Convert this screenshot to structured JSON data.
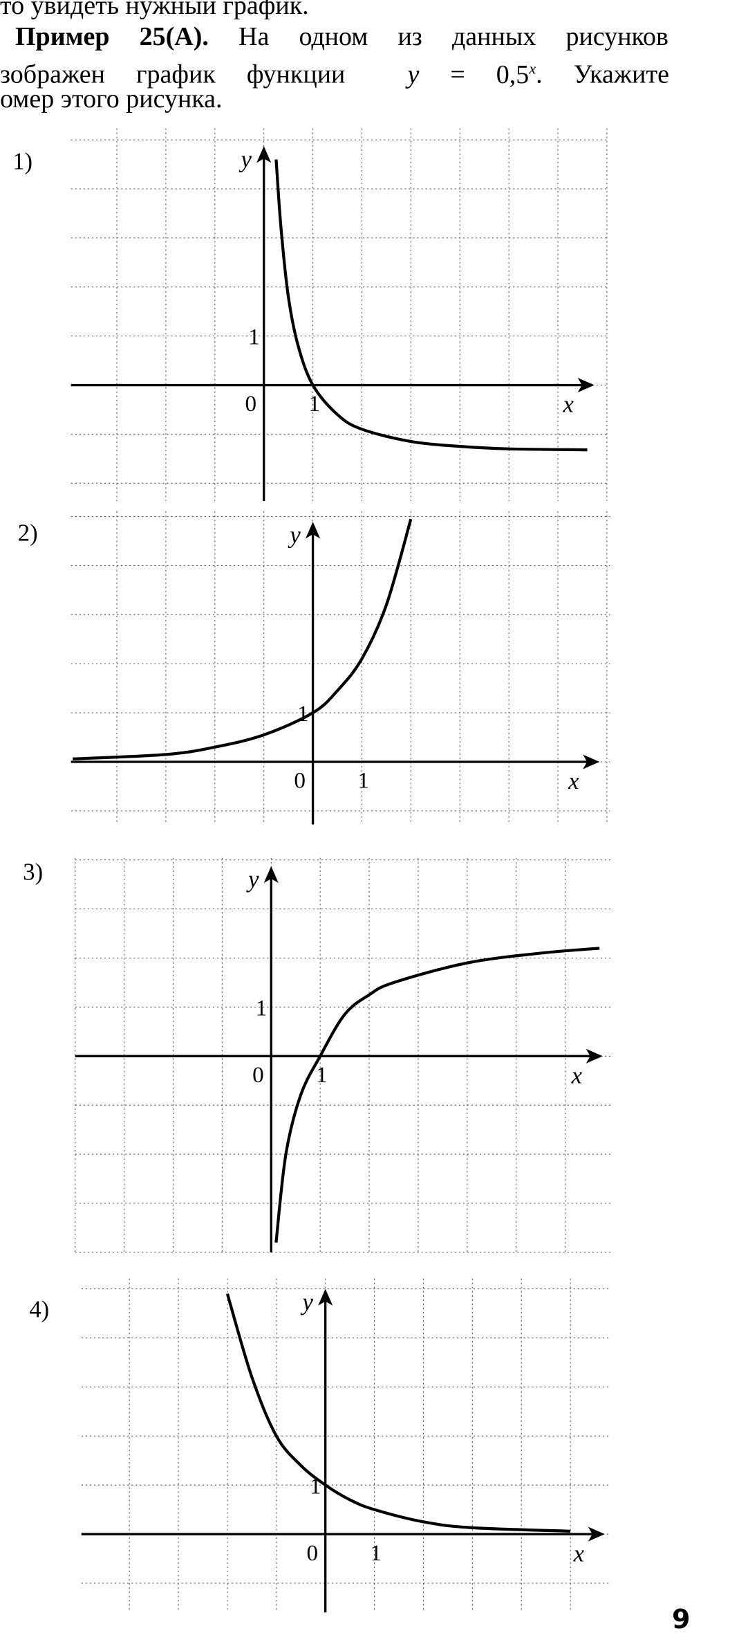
{
  "text": {
    "line1": "то увидеть нужный график.",
    "example_label": "Пример 25(А).",
    "line2_rest": "На одном из данных рисунков",
    "line3_start": "зображен график функции",
    "formula_y": "y",
    "formula_eq": "= 0,5",
    "formula_exp": "x",
    "line3_end": ". Укажите",
    "line4": "омер этого рисунка."
  },
  "page_number": "9",
  "chart_data": [
    {
      "type": "line",
      "panel_label": "1)",
      "xlabel": "x",
      "ylabel": "y",
      "origin_label": "0",
      "x_tick_label": "1",
      "y_tick_label": "1",
      "grid": true,
      "points": [
        [
          0.25,
          4.6
        ],
        [
          0.35,
          3.2
        ],
        [
          0.5,
          1.8
        ],
        [
          0.7,
          0.8
        ],
        [
          1,
          0
        ],
        [
          1.5,
          -0.6
        ],
        [
          2,
          -0.9
        ],
        [
          3,
          -1.15
        ],
        [
          4,
          -1.25
        ],
        [
          5,
          -1.3
        ],
        [
          6.6,
          -1.32
        ]
      ]
    },
    {
      "type": "line",
      "panel_label": "2)",
      "xlabel": "x",
      "ylabel": "y",
      "origin_label": "0",
      "x_tick_label": "1",
      "y_tick_label": "1",
      "grid": true,
      "points": [
        [
          -4.9,
          0.06
        ],
        [
          -3,
          0.15
        ],
        [
          -2,
          0.3
        ],
        [
          -1,
          0.55
        ],
        [
          0,
          1
        ],
        [
          0.5,
          1.45
        ],
        [
          1,
          2.1
        ],
        [
          1.5,
          3.2
        ],
        [
          2,
          4.95
        ]
      ]
    },
    {
      "type": "line",
      "panel_label": "3)",
      "xlabel": "x",
      "ylabel": "y",
      "origin_label": "0",
      "x_tick_label": "1",
      "y_tick_label": "1",
      "grid": true,
      "points": [
        [
          0.1,
          -3.8
        ],
        [
          0.3,
          -2
        ],
        [
          0.6,
          -0.8
        ],
        [
          1,
          0
        ],
        [
          1.5,
          0.85
        ],
        [
          2,
          1.25
        ],
        [
          2.5,
          1.5
        ],
        [
          4,
          1.9
        ],
        [
          5.5,
          2.1
        ],
        [
          6.7,
          2.2
        ]
      ]
    },
    {
      "type": "line",
      "panel_label": "4)",
      "xlabel": "x",
      "ylabel": "y",
      "origin_label": "0",
      "x_tick_label": "1",
      "y_tick_label": "1",
      "grid": true,
      "points": [
        [
          -2,
          4.9
        ],
        [
          -1.5,
          3.2
        ],
        [
          -1,
          2
        ],
        [
          -0.5,
          1.4
        ],
        [
          0,
          1
        ],
        [
          0.5,
          0.7
        ],
        [
          1,
          0.5
        ],
        [
          2,
          0.25
        ],
        [
          3,
          0.13
        ],
        [
          5,
          0.06
        ]
      ]
    }
  ]
}
